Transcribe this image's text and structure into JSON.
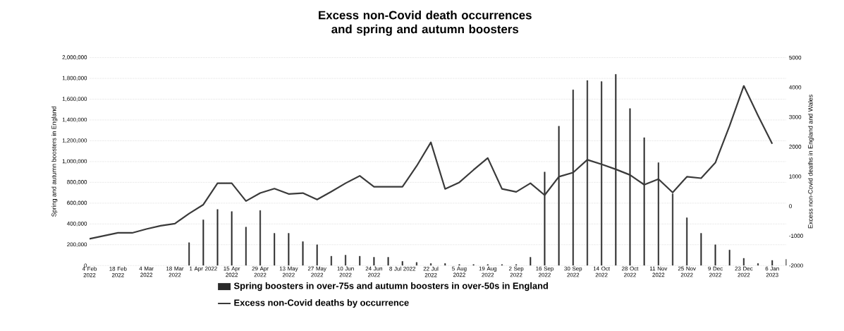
{
  "chart_data": {
    "type": "bar",
    "title": "Excess non-Covid death occurrences and spring and autumn boosters",
    "ylabel": "Spring and autumn boosters in England",
    "y2label": "Excess non-Covid deaths in England and Wales",
    "categories": [
      "4 Feb 2022",
      null,
      "18 Feb 2022",
      null,
      "4 Mar 2022",
      null,
      "18 Mar 2022",
      null,
      "1 Apr 2022",
      null,
      "15 Apr 2022",
      null,
      "29 Apr 2022",
      null,
      "13 May 2022",
      null,
      "27 May 2022",
      null,
      "10 Jun 2022",
      null,
      "24 Jun 2022",
      null,
      "8 Jul 2022",
      null,
      "22 Jul 2022",
      null,
      "5 Aug 2022",
      null,
      "19 Aug 2022",
      null,
      "2 Sep 2022",
      null,
      "16 Sep 2022",
      null,
      "30 Sep 2022",
      null,
      "14 Oct 2022",
      null,
      "28 Oct 2022",
      null,
      "11 Nov 2022",
      null,
      "25 Nov 2022",
      null,
      "9 Dec 2022",
      null,
      "23 Dec 2022",
      null,
      "6 Jan 2023",
      null
    ],
    "series": [
      {
        "name": "Spring boosters in over-75s and autumn boosters in over-50s in England",
        "type": "bar",
        "color": "#2a2a2a",
        "values": [
          null,
          null,
          null,
          null,
          null,
          null,
          null,
          220000,
          440000,
          540000,
          520000,
          370000,
          530000,
          310000,
          310000,
          230000,
          200000,
          90000,
          100000,
          90000,
          80000,
          80000,
          40000,
          30000,
          20000,
          20000,
          10000,
          10000,
          10000,
          10000,
          10000,
          80000,
          900000,
          1340000,
          1690000,
          1780000,
          1770000,
          1840000,
          1510000,
          1230000,
          990000,
          690000,
          460000,
          310000,
          200000,
          150000,
          70000,
          20000,
          50000,
          60000
        ]
      },
      {
        "name": "Excess non-Covid deaths by occurrence",
        "type": "line",
        "axis": "y2",
        "color": "#3a3a3a",
        "values": [
          -1100,
          -1000,
          -900,
          -900,
          -770,
          -660,
          -590,
          -250,
          50,
          770,
          770,
          170,
          440,
          590,
          410,
          440,
          220,
          490,
          770,
          1020,
          650,
          650,
          650,
          1350,
          2150,
          580,
          800,
          1220,
          1620,
          580,
          480,
          770,
          370,
          990,
          1130,
          1560,
          1410,
          1240,
          1050,
          720,
          910,
          460,
          990,
          940,
          1460,
          2700,
          4050,
          3050,
          2100,
          null
        ]
      }
    ],
    "ylim": [
      0,
      2000000
    ],
    "yticks": [
      0,
      {
        "value": 200000,
        "label": "200,000"
      },
      {
        "value": 400000,
        "label": "400,000"
      },
      {
        "value": 600000,
        "label": "600,000"
      },
      {
        "value": 800000,
        "label": "800,000"
      },
      {
        "value": 1000000,
        "label": "1,000,000"
      },
      {
        "value": 1200000,
        "label": "1,200,000"
      },
      {
        "value": 1400000,
        "label": "1,400,000"
      },
      {
        "value": 1600000,
        "label": "1,600,000"
      },
      {
        "value": 1800000,
        "label": "1,800,000"
      },
      {
        "value": 2000000,
        "label": "2,000,000"
      }
    ],
    "y2lim": [
      -2000,
      5000
    ],
    "y2ticks": [
      -2000,
      -1000,
      0,
      1000,
      2000,
      3000,
      4000,
      5000
    ],
    "grid": "y",
    "legend": "bottom"
  }
}
